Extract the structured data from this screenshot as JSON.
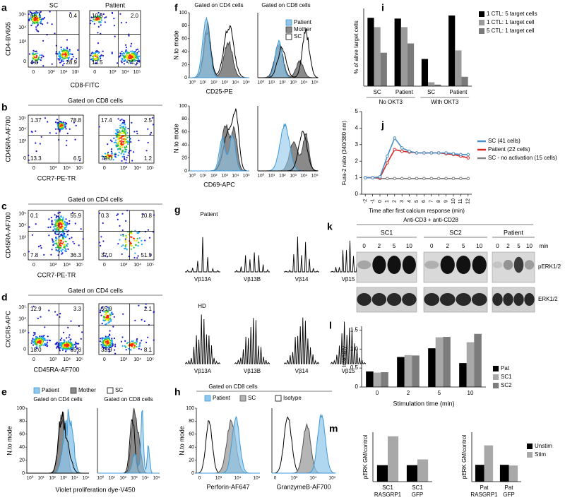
{
  "panels": {
    "a": {
      "label": "a",
      "titles": [
        "SC",
        "Patient"
      ],
      "ylabel": "CD4-BV605",
      "xlabel": "CD8-FITC",
      "ticks": [
        "0",
        "10³",
        "10⁴",
        "10⁵"
      ],
      "quadrants": [
        [
          "66.1",
          "0.4",
          "4.8",
          "28.9"
        ],
        [
          "10.8",
          "2.0",
          "12.5",
          "74.7"
        ]
      ]
    },
    "b": {
      "label": "b",
      "title": "Gated on CD8 cells",
      "ylabel": "CD45RA-AF700",
      "xlabel": "CCR7-PE-TR",
      "ticks": [
        "0",
        "10³",
        "10⁴",
        "10⁵"
      ],
      "quadrants": [
        [
          "1.37",
          "78.8",
          "13.3",
          "6.5"
        ],
        [
          "17.4",
          "2.5",
          "79.0",
          "1.2"
        ]
      ]
    },
    "c": {
      "label": "c",
      "title": "Gated on CD4 cells",
      "ylabel": "CD45RA-AF700",
      "xlabel": "CCR7-PE-TR",
      "ticks": [
        "0",
        "10³",
        "10⁴",
        "10⁵"
      ],
      "quadrants": [
        [
          "0.1",
          "55.9",
          "7.8",
          "36.3"
        ],
        [
          "0.3",
          "10.8",
          "37.0",
          "51.9"
        ]
      ]
    },
    "d": {
      "label": "d",
      "title": "Gated on CD4 cells",
      "ylabel": "CXCR5-APC",
      "xlabel": "CD45RA-AF700",
      "ticks": [
        "0",
        "10³",
        "10⁴",
        "10⁵"
      ],
      "quadrants": [
        [
          "12.9",
          "3.3",
          "18.0",
          "65.8"
        ],
        [
          "55.9",
          "2.1",
          "33.9",
          "8.1"
        ]
      ]
    },
    "e": {
      "label": "e",
      "titles": [
        "Gated on CD4 cells",
        "Gated on CD8 cells"
      ],
      "legend": [
        "Patient",
        "Mother",
        "SC"
      ],
      "ylabel": "N.to mode",
      "xlabel": "Violet proliferation dye-V450",
      "yticks": [
        "0",
        "20",
        "40",
        "60",
        "80",
        "100"
      ],
      "xticks": [
        "10⁰",
        "10¹",
        "10²",
        "10³",
        "10⁴",
        "10⁵"
      ]
    },
    "f": {
      "label": "f",
      "titles": [
        "Gated on CD4 cells",
        "Gated on CD8 cells"
      ],
      "legend": [
        "Patient",
        "Mother",
        "SC"
      ],
      "ylabel": "N.to mode",
      "xlabels": [
        "CD25-PE",
        "CD69-APC"
      ],
      "yticks": [
        "0",
        "20",
        "40",
        "60",
        "80",
        "100"
      ],
      "xticks": [
        "10⁰",
        "10¹",
        "10²",
        "10³",
        "10⁴",
        "10⁵"
      ]
    },
    "g": {
      "label": "g",
      "rows": [
        "Patient",
        "HD"
      ],
      "segments": [
        "Vβ13A",
        "Vβ13B",
        "Vβ14",
        "Vβ15"
      ]
    },
    "h": {
      "label": "h",
      "title": "Gated on CD8 cells",
      "legend": [
        "Patient",
        "SC",
        "Isotype"
      ],
      "ylabel": "N.to mode",
      "xlabels": [
        "Perforin-AF647",
        "GranzymeB-AF700"
      ],
      "yticks": [
        "0",
        "20",
        "40",
        "60",
        "80",
        "100"
      ],
      "xticks": [
        "0",
        "10³",
        "10⁴",
        "10⁵"
      ]
    },
    "k": {
      "label": "k",
      "title": "Anti-CD3 + anti-CD28",
      "groups": [
        "SC1",
        "SC2",
        "Patient"
      ],
      "lanes": [
        "0",
        "2",
        "5",
        "10"
      ],
      "unit": "min",
      "rows": [
        "pERK1/2",
        "ERK1/2"
      ]
    }
  },
  "chart_data": [
    {
      "type": "bar",
      "panel_label": "i",
      "ylabel": "% of alive target cells",
      "categories": [
        "SC",
        "Patient",
        "SC",
        "Patient"
      ],
      "group_labels": [
        "No OKT3",
        "With OKT3"
      ],
      "ylim": [
        0,
        100
      ],
      "legend": "right",
      "series": [
        {
          "name": "1 CTL: 5 target cells",
          "color": "#000000",
          "values": [
            88,
            87,
            35,
            91
          ]
        },
        {
          "name": "1 CTL: 1 target cell",
          "color": "#9a9a9a",
          "values": [
            76,
            76,
            5,
            46
          ]
        },
        {
          "name": "5 CTL: 1 target cell",
          "color": "#7a7a7a",
          "values": [
            43,
            55,
            2,
            12
          ]
        }
      ]
    },
    {
      "type": "line",
      "panel_label": "j",
      "ylabel": "Fura-2 ratio (340/380 nm)",
      "xlabel": "Time after first calcium response (min)",
      "x": [
        -2,
        -1,
        0,
        1,
        2,
        3,
        4,
        5,
        6,
        7,
        8,
        9,
        10,
        11,
        12
      ],
      "xlim": [
        -2.5,
        12.5
      ],
      "xticks": [
        -2,
        -1,
        0,
        1,
        2,
        3,
        4,
        5,
        6,
        7,
        8,
        9,
        10,
        11,
        12
      ],
      "ylim": [
        0,
        5
      ],
      "yticks": [
        0,
        1,
        2,
        3,
        4,
        5
      ],
      "legend": "right",
      "series": [
        {
          "name": "SC (41 cells)",
          "color": "#4a90c8",
          "values": [
            1.0,
            1.0,
            1.05,
            2.3,
            3.4,
            2.8,
            2.6,
            2.5,
            2.5,
            2.5,
            2.5,
            2.5,
            2.45,
            2.4,
            2.4
          ]
        },
        {
          "name": "Patient (22 cells)",
          "color": "#d62a2a",
          "values": [
            1.0,
            1.0,
            1.0,
            1.9,
            2.7,
            2.6,
            2.55,
            2.5,
            2.5,
            2.5,
            2.5,
            2.45,
            2.4,
            2.3,
            2.2
          ]
        },
        {
          "name": "SC - no activation (15 cells)",
          "color": "#808080",
          "values": [
            1.0,
            1.0,
            0.95,
            0.95,
            0.95,
            0.95,
            0.95,
            0.95,
            0.95,
            0.95,
            0.95,
            0.95,
            0.95,
            0.95,
            0.95
          ]
        }
      ]
    },
    {
      "type": "bar",
      "panel_label": "l",
      "ylabel": "Intensity",
      "xlabel": "Stimulation time (min)",
      "categories": [
        "0",
        "2",
        "5",
        "10"
      ],
      "ylim": [
        0,
        1.6
      ],
      "yticks": [
        0,
        0.5,
        {
          "value": 1,
          "label": "1.0"
        },
        1.5
      ],
      "legend": "right",
      "series": [
        {
          "name": "Pat",
          "color": "#000000",
          "values": [
            0.41,
            0.79,
            1.02,
            0.63
          ]
        },
        {
          "name": "SC1",
          "color": "#a8a8a8",
          "values": [
            0.38,
            0.84,
            1.31,
            1.18
          ]
        },
        {
          "name": "SC2",
          "color": "#7c7c7c",
          "values": [
            0.39,
            0.83,
            1.32,
            1.4
          ]
        }
      ]
    },
    {
      "type": "bar",
      "panel_label": "m",
      "ylabel": "pERK GM/control",
      "categories": [
        "SC1 RASGRP1",
        "SC1 GFP"
      ],
      "ylim": [
        0,
        3
      ],
      "series": [
        {
          "color": "#000000",
          "values": [
            1.0,
            1.0
          ]
        },
        {
          "color": "#a8a8a8",
          "values": [
            2.75,
            1.35
          ]
        }
      ]
    },
    {
      "type": "bar",
      "ylabel": "pERK GM/control",
      "categories": [
        "Pat RASGRP1",
        "Pat GFP"
      ],
      "ylim": [
        0,
        3
      ],
      "legend": "right",
      "series": [
        {
          "name": "Unstim",
          "color": "#000000",
          "values": [
            1.02,
            1.02
          ]
        },
        {
          "name": "Stim",
          "color": "#a8a8a8",
          "values": [
            2.2,
            0.98
          ]
        }
      ]
    }
  ]
}
